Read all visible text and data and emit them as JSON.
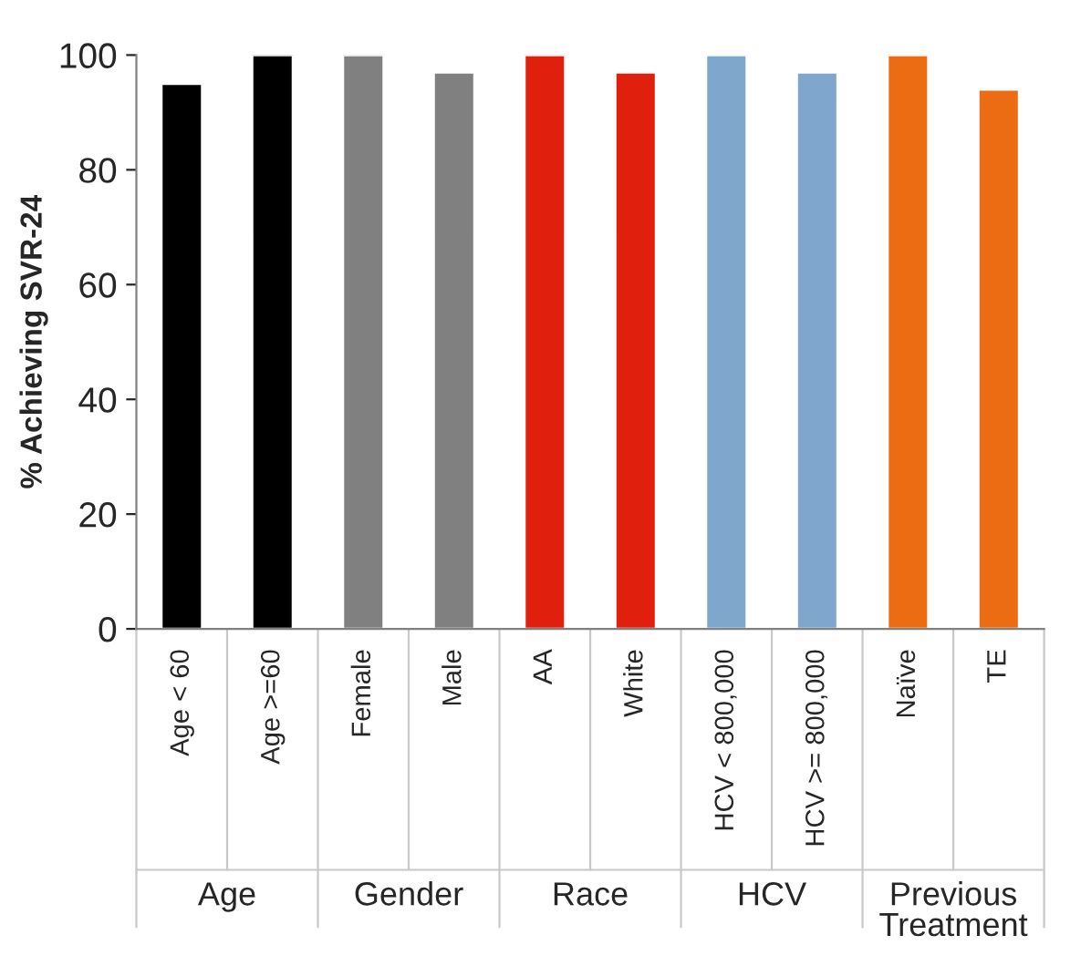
{
  "chart_data": {
    "type": "bar",
    "ylabel": "% Achieving SVR-24",
    "categories": [
      "Age < 60",
      "Age >=60",
      "Female",
      "Male",
      "AA",
      "White",
      "HCV < 800,000",
      "HCV >= 800,000",
      "Naïve",
      "TE"
    ],
    "values": [
      95,
      100,
      100,
      97,
      100,
      97,
      100,
      97,
      100,
      94
    ],
    "colors": [
      "#000000",
      "#000000",
      "#808080",
      "#808080",
      "#e0200c",
      "#e0200c",
      "#7fa6cc",
      "#7fa6cc",
      "#ec6c14",
      "#ec6c14"
    ],
    "ylim": [
      0,
      100
    ],
    "yticks": [
      0,
      20,
      40,
      60,
      80,
      100
    ],
    "grid": false,
    "annotations": [
      "Age",
      "Gender",
      "Race",
      "HCV",
      "Previous\nTreatment"
    ]
  }
}
